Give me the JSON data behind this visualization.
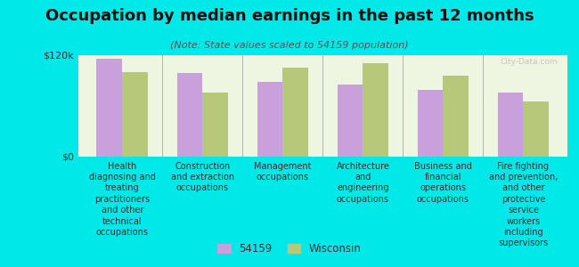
{
  "title": "Occupation by median earnings in the past 12 months",
  "subtitle": "(Note: State values scaled to 54159 population)",
  "categories": [
    "Health\ndiagnosing and\ntreating\npractitioners\nand other\ntechnical\noccupations",
    "Construction\nand extraction\noccupations",
    "Management\noccupations",
    "Architecture\nand\nengineering\noccupations",
    "Business and\nfinancial\noperations\noccupations",
    "Fire fighting\nand prevention,\nand other\nprotective\nservice\nworkers\nincluding\nsupervisors"
  ],
  "values_54159": [
    115000,
    98000,
    88000,
    85000,
    78000,
    75000
  ],
  "values_wisconsin": [
    100000,
    75000,
    105000,
    110000,
    95000,
    65000
  ],
  "color_54159": "#c9a0dc",
  "color_wisconsin": "#b8c87a",
  "legend_54159": "54159",
  "legend_wisconsin": "Wisconsin",
  "ylim": [
    0,
    120000
  ],
  "ytick_labels": [
    "$0",
    "$120k"
  ],
  "background_color": "#00e8e8",
  "plot_bg_color": "#eef5e0",
  "watermark": "City-Data.com",
  "title_fontsize": 13,
  "subtitle_fontsize": 8,
  "tick_fontsize": 8,
  "label_fontsize": 7
}
